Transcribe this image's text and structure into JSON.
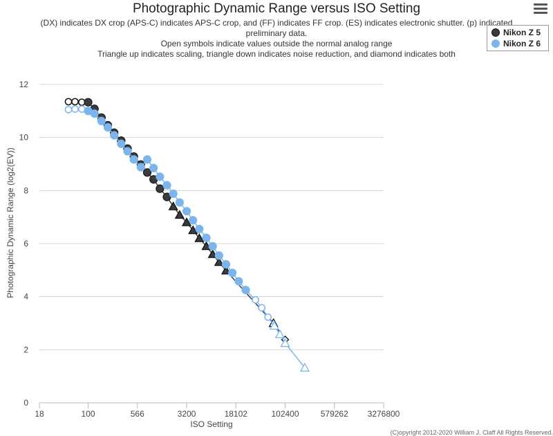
{
  "menu": {
    "icon": "hamburger-menu-icon"
  },
  "chart_data": {
    "type": "scatter",
    "title": "Photographic Dynamic Range versus ISO Setting",
    "subtitle": [
      "(DX) indicates DX crop (APS-C) indicates APS-C crop, and (FF) indicates FF crop. (ES) indicates electronic shutter. (p) indicated",
      "preliminary data.",
      "Open symbols indicate values outside the normal analog range",
      "Triangle up indicates scaling, triangle down indicates noise reduction, and diamond indicates both"
    ],
    "xlabel": "ISO Setting",
    "ylabel": "Photographic Dynamic Range (log2(EV))",
    "x_scale": "log",
    "xlim": [
      18,
      3276800
    ],
    "xticks": [
      18,
      100,
      566,
      3200,
      18102,
      102400,
      579262,
      3276800
    ],
    "ylim": [
      0,
      12
    ],
    "yticks": [
      0,
      2,
      4,
      6,
      8,
      10,
      12
    ],
    "legend_position": "top-right",
    "series": [
      {
        "name": "Nikon Z 5",
        "color": "#3b3b3f",
        "points": [
          {
            "x": 50,
            "y": 11.35,
            "shape": "circle",
            "open": true
          },
          {
            "x": 63,
            "y": 11.35,
            "shape": "circle",
            "open": true
          },
          {
            "x": 80,
            "y": 11.33,
            "shape": "circle",
            "open": true
          },
          {
            "x": 100,
            "y": 11.33,
            "shape": "circle",
            "open": false
          },
          {
            "x": 125,
            "y": 11.08,
            "shape": "circle",
            "open": false
          },
          {
            "x": 160,
            "y": 10.75,
            "shape": "circle",
            "open": false
          },
          {
            "x": 200,
            "y": 10.46,
            "shape": "circle",
            "open": false
          },
          {
            "x": 250,
            "y": 10.18,
            "shape": "circle",
            "open": false
          },
          {
            "x": 320,
            "y": 9.88,
            "shape": "circle",
            "open": false
          },
          {
            "x": 400,
            "y": 9.58,
            "shape": "circle",
            "open": false
          },
          {
            "x": 500,
            "y": 9.28,
            "shape": "circle",
            "open": false
          },
          {
            "x": 640,
            "y": 8.98,
            "shape": "circle",
            "open": false
          },
          {
            "x": 800,
            "y": 8.68,
            "shape": "circle",
            "open": false
          },
          {
            "x": 1000,
            "y": 8.42,
            "shape": "circle",
            "open": false
          },
          {
            "x": 1250,
            "y": 8.07,
            "shape": "circle",
            "open": false
          },
          {
            "x": 1600,
            "y": 7.76,
            "shape": "circle",
            "open": false
          },
          {
            "x": 2000,
            "y": 7.4,
            "shape": "triangle-up",
            "open": false
          },
          {
            "x": 2500,
            "y": 7.08,
            "shape": "triangle-up",
            "open": false
          },
          {
            "x": 3200,
            "y": 6.8,
            "shape": "triangle-up",
            "open": false
          },
          {
            "x": 4000,
            "y": 6.5,
            "shape": "triangle-up",
            "open": false
          },
          {
            "x": 5000,
            "y": 6.2,
            "shape": "triangle-up",
            "open": false
          },
          {
            "x": 6400,
            "y": 5.9,
            "shape": "triangle-up",
            "open": false
          },
          {
            "x": 8000,
            "y": 5.6,
            "shape": "triangle-up",
            "open": false
          },
          {
            "x": 10000,
            "y": 5.3,
            "shape": "triangle-up",
            "open": false
          },
          {
            "x": 12800,
            "y": 4.98,
            "shape": "triangle-up",
            "open": false
          },
          {
            "x": 68000,
            "y": 3.0,
            "shape": "triangle-up",
            "open": true
          },
          {
            "x": 102400,
            "y": 2.38,
            "shape": "diamond",
            "open": true
          }
        ]
      },
      {
        "name": "Nikon Z 6",
        "color": "#7cb5ec",
        "points": [
          {
            "x": 50,
            "y": 11.05,
            "shape": "circle",
            "open": true
          },
          {
            "x": 63,
            "y": 11.07,
            "shape": "circle",
            "open": true
          },
          {
            "x": 80,
            "y": 11.07,
            "shape": "circle",
            "open": true
          },
          {
            "x": 100,
            "y": 11.0,
            "shape": "circle",
            "open": false
          },
          {
            "x": 125,
            "y": 10.9,
            "shape": "circle",
            "open": false
          },
          {
            "x": 160,
            "y": 10.62,
            "shape": "circle",
            "open": false
          },
          {
            "x": 200,
            "y": 10.38,
            "shape": "circle",
            "open": false
          },
          {
            "x": 250,
            "y": 10.08,
            "shape": "circle",
            "open": false
          },
          {
            "x": 320,
            "y": 9.76,
            "shape": "circle",
            "open": false
          },
          {
            "x": 400,
            "y": 9.48,
            "shape": "circle",
            "open": false
          },
          {
            "x": 500,
            "y": 9.17,
            "shape": "circle",
            "open": false
          },
          {
            "x": 640,
            "y": 8.88,
            "shape": "circle",
            "open": false
          },
          {
            "x": 800,
            "y": 9.17,
            "shape": "circle",
            "open": false
          },
          {
            "x": 1000,
            "y": 8.85,
            "shape": "circle",
            "open": false
          },
          {
            "x": 1250,
            "y": 8.52,
            "shape": "circle",
            "open": false
          },
          {
            "x": 1600,
            "y": 8.2,
            "shape": "circle",
            "open": false
          },
          {
            "x": 2000,
            "y": 7.88,
            "shape": "circle",
            "open": false
          },
          {
            "x": 2500,
            "y": 7.55,
            "shape": "circle",
            "open": false
          },
          {
            "x": 3200,
            "y": 7.22,
            "shape": "circle",
            "open": false
          },
          {
            "x": 4000,
            "y": 6.88,
            "shape": "circle",
            "open": false
          },
          {
            "x": 5000,
            "y": 6.55,
            "shape": "circle",
            "open": false
          },
          {
            "x": 6400,
            "y": 6.22,
            "shape": "circle",
            "open": false
          },
          {
            "x": 8000,
            "y": 5.9,
            "shape": "circle",
            "open": false
          },
          {
            "x": 10000,
            "y": 5.55,
            "shape": "circle",
            "open": false
          },
          {
            "x": 12800,
            "y": 5.22,
            "shape": "circle",
            "open": false
          },
          {
            "x": 16000,
            "y": 4.9,
            "shape": "circle",
            "open": false
          },
          {
            "x": 20000,
            "y": 4.58,
            "shape": "circle",
            "open": false
          },
          {
            "x": 25600,
            "y": 4.25,
            "shape": "circle",
            "open": false
          },
          {
            "x": 36000,
            "y": 3.88,
            "shape": "circle",
            "open": true
          },
          {
            "x": 45000,
            "y": 3.58,
            "shape": "circle",
            "open": true
          },
          {
            "x": 56000,
            "y": 3.23,
            "shape": "circle",
            "open": true
          },
          {
            "x": 70000,
            "y": 2.9,
            "shape": "triangle-up",
            "open": true
          },
          {
            "x": 85000,
            "y": 2.58,
            "shape": "triangle-up",
            "open": true
          },
          {
            "x": 102400,
            "y": 2.25,
            "shape": "triangle-up",
            "open": true
          },
          {
            "x": 204800,
            "y": 1.32,
            "shape": "triangle-up",
            "open": true
          }
        ]
      }
    ]
  },
  "credits": "(C)opyright 2012-2020 William J. Claff All Rights Reserved."
}
